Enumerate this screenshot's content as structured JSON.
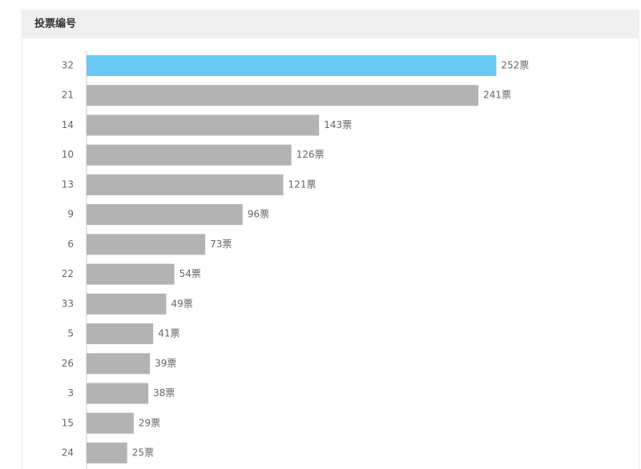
{
  "chart_data": {
    "type": "hbar",
    "title": "投票编号",
    "categories": [
      "32",
      "21",
      "14",
      "10",
      "13",
      "9",
      "6",
      "22",
      "33",
      "5",
      "26",
      "3",
      "15",
      "24"
    ],
    "values": [
      252,
      241,
      143,
      126,
      121,
      96,
      73,
      54,
      49,
      41,
      39,
      38,
      29,
      25
    ],
    "value_labels": [
      "252票",
      "241票",
      "143票",
      "126票",
      "121票",
      "96票",
      "73票",
      "54票",
      "49票",
      "41票",
      "39票",
      "38票",
      "29票",
      "25票"
    ],
    "colors": [
      "#6ac8f5",
      "#b3b3b3",
      "#b3b3b3",
      "#b3b3b3",
      "#b3b3b3",
      "#b3b3b3",
      "#b3b3b3",
      "#b3b3b3",
      "#b3b3b3",
      "#b3b3b3",
      "#b3b3b3",
      "#b3b3b3",
      "#b3b3b3",
      "#b3b3b3"
    ],
    "xlim": [
      0,
      340
    ]
  }
}
